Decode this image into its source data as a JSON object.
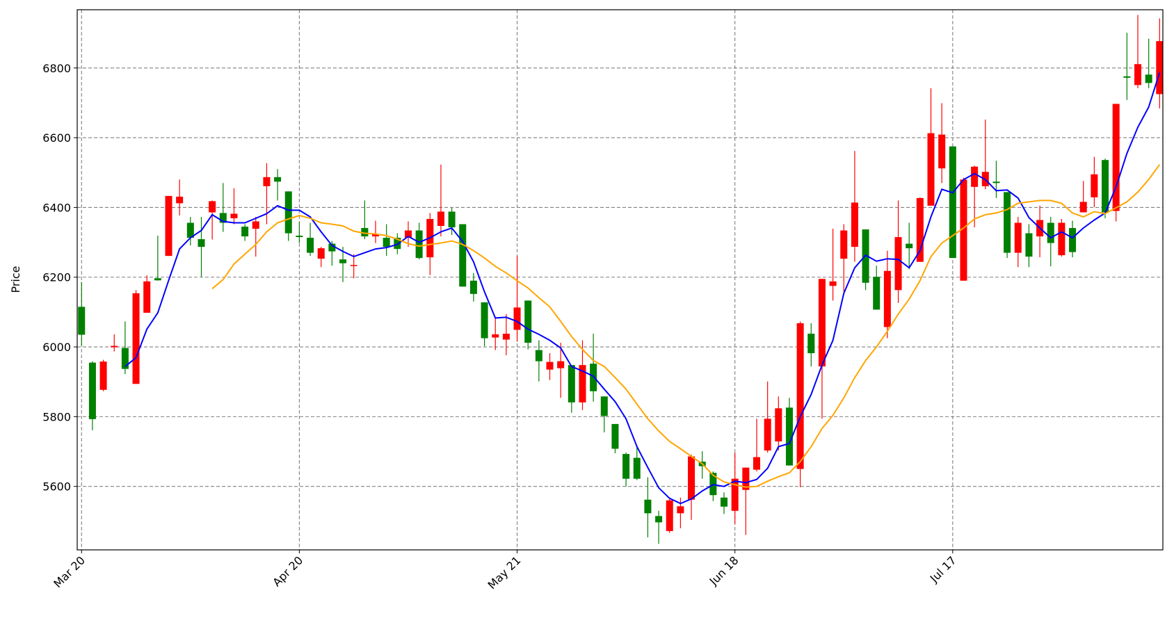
{
  "chart_data": {
    "type": "candlestick",
    "y_label": "Price",
    "categories": [
      "Mar 20",
      null,
      null,
      null,
      null,
      null,
      null,
      null,
      null,
      null,
      null,
      null,
      null,
      null,
      null,
      null,
      null,
      null,
      null,
      null,
      "Apr 20",
      null,
      null,
      null,
      null,
      null,
      null,
      null,
      null,
      null,
      null,
      null,
      null,
      null,
      null,
      null,
      null,
      null,
      null,
      null,
      "May 21",
      null,
      null,
      null,
      null,
      null,
      null,
      null,
      null,
      null,
      null,
      null,
      null,
      null,
      null,
      null,
      null,
      null,
      null,
      null,
      "Jun 18",
      null,
      null,
      null,
      null,
      null,
      null,
      null,
      null,
      null,
      null,
      null,
      null,
      null,
      null,
      null,
      null,
      null,
      null,
      null,
      "Jul 17",
      null,
      null,
      null,
      null,
      null,
      null,
      null,
      null,
      null,
      null,
      null,
      null,
      null,
      null,
      null,
      null,
      null,
      null,
      null
    ],
    "open": [
      6115,
      5955,
      5877,
      5999,
      5997,
      5894,
      6098,
      6197,
      6261,
      6412,
      6356,
      6309,
      6386,
      6384,
      6369,
      6345,
      6339,
      6461,
      6487,
      6446,
      6319,
      6313,
      6253,
      6296,
      6251,
      6232,
      6341,
      6317,
      6313,
      6313,
      6313,
      6334,
      6257,
      6347,
      6388,
      6352,
      6190,
      6128,
      6027,
      6021,
      6049,
      6133,
      5991,
      5935,
      5939,
      5948,
      5841,
      5952,
      5858,
      5779,
      5693,
      5682,
      5562,
      5515,
      5472,
      5523,
      5562,
      5671,
      5639,
      5568,
      5530,
      5590,
      5648,
      5703,
      5729,
      5826,
      5650,
      6038,
      5944,
      6175,
      6253,
      6287,
      6337,
      6201,
      6057,
      6163,
      6296,
      6244,
      6405,
      6512,
      6575,
      6190,
      6459,
      6461,
      6474,
      6444,
      6270,
      6326,
      6317,
      6356,
      6263,
      6341,
      6386,
      6429,
      6536,
      6390,
      6776,
      6751,
      6781,
      6725
    ],
    "high": [
      6186,
      5959,
      5963,
      6036,
      6073,
      6163,
      6205,
      6319,
      6433,
      6480,
      6373,
      6373,
      6420,
      6470,
      6455,
      6352,
      6373,
      6527,
      6510,
      6446,
      6358,
      6356,
      6287,
      6304,
      6287,
      6266,
      6420,
      6362,
      6352,
      6326,
      6360,
      6356,
      6384,
      6523,
      6399,
      6352,
      6212,
      6128,
      6083,
      6094,
      6261,
      6133,
      6019,
      5982,
      6012,
      5948,
      6019,
      6038,
      5858,
      5779,
      5697,
      5718,
      5626,
      5530,
      5568,
      5568,
      5691,
      5701,
      5643,
      5583,
      5697,
      5654,
      5794,
      5901,
      5858,
      5854,
      6073,
      6068,
      6195,
      6339,
      6352,
      6562,
      6337,
      6233,
      6276,
      6420,
      6356,
      6429,
      6742,
      6699,
      6575,
      6485,
      6520,
      6652,
      6534,
      6444,
      6373,
      6352,
      6405,
      6373,
      6367,
      6362,
      6476,
      6545,
      6540,
      6697,
      6901,
      6952,
      6884,
      6942
    ],
    "low": [
      6004,
      5761,
      5873,
      5987,
      5922,
      5894,
      6098,
      6190,
      6261,
      6377,
      6291,
      6201,
      6308,
      6330,
      6352,
      6304,
      6259,
      6352,
      6420,
      6304,
      6298,
      6261,
      6229,
      6233,
      6186,
      6197,
      6309,
      6298,
      6261,
      6266,
      6287,
      6251,
      6206,
      6317,
      6321,
      6173,
      6130,
      6002,
      5991,
      5976,
      6015,
      5993,
      5901,
      5905,
      5854,
      5811,
      5819,
      5843,
      5755,
      5695,
      5600,
      5618,
      5454,
      5435,
      5467,
      5480,
      5504,
      5622,
      5558,
      5521,
      5493,
      5461,
      5643,
      5697,
      5703,
      5660,
      5598,
      5944,
      5794,
      6133,
      6158,
      6244,
      6163,
      6107,
      6025,
      6126,
      6223,
      6244,
      6405,
      6470,
      6255,
      6190,
      6343,
      6452,
      6427,
      6255,
      6229,
      6229,
      6257,
      6231,
      6259,
      6257,
      6386,
      6401,
      6369,
      6360,
      6708,
      6742,
      6742,
      6684
    ],
    "close": [
      6035,
      5793,
      5958,
      6003,
      5937,
      6154,
      6188,
      6191,
      6433,
      6431,
      6313,
      6287,
      6418,
      6356,
      6382,
      6317,
      6360,
      6487,
      6474,
      6326,
      6315,
      6270,
      6283,
      6274,
      6240,
      6235,
      6317,
      6324,
      6287,
      6281,
      6334,
      6255,
      6367,
      6388,
      6343,
      6173,
      6152,
      6025,
      6036,
      6038,
      6113,
      6012,
      5959,
      5957,
      5959,
      5841,
      5948,
      5873,
      5802,
      5708,
      5622,
      5622,
      5523,
      5497,
      5560,
      5543,
      5686,
      5658,
      5575,
      5542,
      5622,
      5654,
      5684,
      5794,
      5824,
      5660,
      6068,
      5982,
      6195,
      6188,
      6334,
      6414,
      6184,
      6107,
      6218,
      6315,
      6283,
      6427,
      6613,
      6609,
      6255,
      6480,
      6517,
      6502,
      6470,
      6270,
      6356,
      6259,
      6364,
      6298,
      6356,
      6272,
      6416,
      6495,
      6386,
      6697,
      6772,
      6811,
      6757,
      6877
    ],
    "up_color": "#ff0000",
    "down_color": "#008000",
    "series": [
      {
        "color": "#0000ff",
        "values": [
          null,
          null,
          null,
          null,
          5944,
          5969,
          6051,
          6098,
          6191,
          6281,
          6313,
          6334,
          6379,
          6360,
          6356,
          6356,
          6369,
          6382,
          6405,
          6392,
          6392,
          6373,
          6330,
          6291,
          6274,
          6259,
          6270,
          6281,
          6285,
          6294,
          6317,
          6300,
          6313,
          6330,
          6341,
          6302,
          6244,
          6158,
          6083,
          6085,
          6073,
          6051,
          6036,
          6019,
          5997,
          5944,
          5931,
          5916,
          5879,
          5843,
          5794,
          5714,
          5654,
          5596,
          5566,
          5551,
          5564,
          5587,
          5605,
          5600,
          5615,
          5611,
          5620,
          5652,
          5714,
          5723,
          5800,
          5864,
          5948,
          6019,
          6154,
          6227,
          6263,
          6246,
          6253,
          6251,
          6227,
          6276,
          6373,
          6452,
          6442,
          6480,
          6497,
          6480,
          6448,
          6450,
          6427,
          6371,
          6341,
          6313,
          6330,
          6313,
          6341,
          6364,
          6384,
          6459,
          6555,
          6630,
          6688,
          6787
        ]
      },
      {
        "color": "#ffa500",
        "values": [
          null,
          null,
          null,
          null,
          null,
          null,
          null,
          null,
          null,
          null,
          null,
          null,
          6167,
          6193,
          6238,
          6266,
          6294,
          6330,
          6356,
          6367,
          6377,
          6369,
          6356,
          6352,
          6347,
          6332,
          6326,
          6324,
          6319,
          6309,
          6296,
          6289,
          6294,
          6298,
          6304,
          6294,
          6276,
          6255,
          6231,
          6212,
          6190,
          6169,
          6141,
          6115,
          6073,
          6030,
          5993,
          5961,
          5944,
          5912,
          5879,
          5836,
          5794,
          5759,
          5729,
          5708,
          5686,
          5665,
          5632,
          5613,
          5605,
          5598,
          5600,
          5615,
          5628,
          5639,
          5671,
          5714,
          5766,
          5804,
          5854,
          5912,
          5961,
          6000,
          6045,
          6094,
          6137,
          6190,
          6259,
          6298,
          6319,
          6341,
          6367,
          6379,
          6384,
          6394,
          6412,
          6416,
          6420,
          6420,
          6412,
          6384,
          6373,
          6388,
          6382,
          6399,
          6416,
          6444,
          6480,
          6523
        ]
      }
    ],
    "xlim": [
      -0.4,
      99.3
    ],
    "ylim": [
      5418,
      6967
    ],
    "yticks": [
      5600,
      5800,
      6000,
      6200,
      6400,
      6600,
      6800
    ],
    "grid": true
  }
}
